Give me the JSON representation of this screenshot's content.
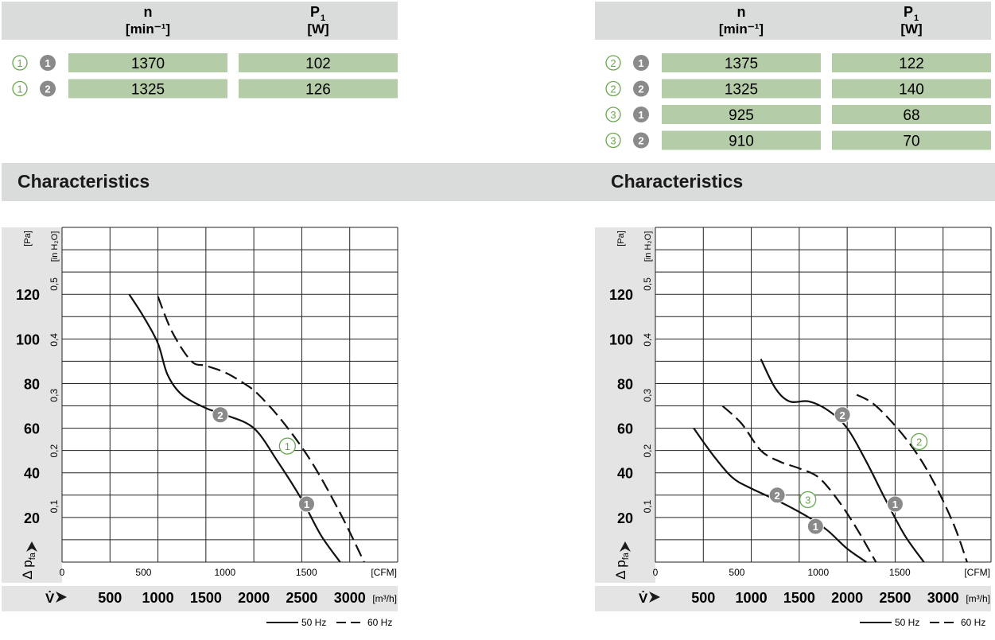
{
  "tables": [
    {
      "header": {
        "n_label": "n",
        "n_unit": "[min⁻¹]",
        "p_label": "P",
        "p_sub": "1",
        "p_unit": "[W]"
      },
      "rows": [
        {
          "variant": "1",
          "curve": "1",
          "n": "1370",
          "p1": "102"
        },
        {
          "variant": "1",
          "curve": "2",
          "n": "1325",
          "p1": "126"
        }
      ]
    },
    {
      "header": {
        "n_label": "n",
        "n_unit": "[min⁻¹]",
        "p_label": "P",
        "p_sub": "1",
        "p_unit": "[W]"
      },
      "rows": [
        {
          "variant": "2",
          "curve": "1",
          "n": "1375",
          "p1": "122"
        },
        {
          "variant": "2",
          "curve": "2",
          "n": "1325",
          "p1": "140"
        },
        {
          "variant": "3",
          "curve": "1",
          "n": "925",
          "p1": "68"
        },
        {
          "variant": "3",
          "curve": "2",
          "n": "910",
          "p1": "70"
        }
      ]
    }
  ],
  "section_titles": [
    "Characteristics",
    "Characteristics"
  ],
  "legend": {
    "solid": "50 Hz",
    "dashed": "60 Hz"
  },
  "colors": {
    "table_cell": "#b5cca8",
    "header_bg": "#dadbdb",
    "circle_green": "#6aa84f",
    "badge_gray": "#8a8a8a"
  },
  "chart_data": [
    {
      "type": "line",
      "title": "",
      "ylabel_pa": "[Pa]",
      "ylabel_inh2o": "[in H₂O]",
      "ylabel_symbol": "Δ p",
      "ylabel_symbol_sub": "fa",
      "xlabel_cfm": "[CFM]",
      "xlabel_m3h": "[m³/h]",
      "xlabel_symbol": "V̇",
      "xlim_m3h": [
        0,
        3500
      ],
      "ylim_pa": [
        0,
        150
      ],
      "yticks_pa": [
        "120",
        "100",
        "80",
        "60",
        "40",
        "20"
      ],
      "yticks_inh2o": [
        "0,5",
        "0,4",
        "0,3",
        "0,2",
        "0,1"
      ],
      "xticks_cfm": [
        "0",
        "500",
        "1000",
        "1500"
      ],
      "xticks_m3h": [
        "500",
        "1000",
        "1500",
        "2000",
        "2500",
        "3000"
      ],
      "series": [
        {
          "style": "solid",
          "x": [
            700,
            850,
            1000,
            1100,
            1250,
            1500,
            1700,
            2000,
            2250,
            2500,
            2700,
            2900
          ],
          "y": [
            120,
            110,
            98,
            84,
            75,
            69,
            66,
            60,
            45,
            28,
            12,
            0
          ]
        },
        {
          "style": "dashed",
          "x": [
            1000,
            1150,
            1350,
            1500,
            1700,
            1900,
            2050,
            2300,
            2600,
            2900,
            3150
          ],
          "y": [
            119,
            103,
            90,
            88,
            85,
            80,
            75,
            63,
            45,
            22,
            0
          ]
        }
      ],
      "badges": [
        {
          "kind": "gray",
          "label": "2",
          "x": 1650,
          "y": 66
        },
        {
          "kind": "green",
          "label": "1",
          "x": 2350,
          "y": 52
        },
        {
          "kind": "gray",
          "label": "1",
          "x": 2550,
          "y": 26
        }
      ]
    },
    {
      "type": "line",
      "title": "",
      "ylabel_pa": "[Pa]",
      "ylabel_inh2o": "[in H₂O]",
      "ylabel_symbol": "Δ p",
      "ylabel_symbol_sub": "fa",
      "xlabel_cfm": "[CFM]",
      "xlabel_m3h": "[m³/h]",
      "xlabel_symbol": "V̇",
      "xlim_m3h": [
        0,
        3500
      ],
      "ylim_pa": [
        0,
        150
      ],
      "yticks_pa": [
        "120",
        "100",
        "80",
        "60",
        "40",
        "20"
      ],
      "yticks_inh2o": [
        "0,5",
        "0,4",
        "0,3",
        "0,2",
        "0,1"
      ],
      "xticks_cfm": [
        "0",
        "500",
        "1000",
        "1500"
      ],
      "xticks_m3h": [
        "500",
        "1000",
        "1500",
        "2000",
        "2500",
        "3000"
      ],
      "series": [
        {
          "style": "solid",
          "x": [
            1100,
            1250,
            1400,
            1600,
            1800,
            2000,
            2200,
            2400,
            2600,
            2800
          ],
          "y": [
            91,
            78,
            72,
            72,
            68,
            60,
            45,
            28,
            12,
            0
          ]
        },
        {
          "style": "dashed",
          "x": [
            2100,
            2300,
            2600,
            2850,
            3100,
            3250
          ],
          "y": [
            75,
            70,
            56,
            40,
            18,
            0
          ]
        },
        {
          "style": "solid",
          "x": [
            400,
            600,
            800,
            1000,
            1300,
            1600,
            1800,
            2000,
            2200
          ],
          "y": [
            60,
            48,
            38,
            33,
            27,
            20,
            14,
            6,
            0
          ]
        },
        {
          "style": "dashed",
          "x": [
            700,
            900,
            1100,
            1300,
            1500,
            1700,
            1900,
            2100,
            2300
          ],
          "y": [
            70,
            62,
            50,
            45,
            42,
            38,
            28,
            15,
            0
          ]
        }
      ],
      "badges": [
        {
          "kind": "gray",
          "label": "2",
          "x": 1950,
          "y": 66
        },
        {
          "kind": "green",
          "label": "2",
          "x": 2750,
          "y": 54
        },
        {
          "kind": "gray",
          "label": "1",
          "x": 2500,
          "y": 26
        },
        {
          "kind": "gray",
          "label": "2",
          "x": 1270,
          "y": 30
        },
        {
          "kind": "green",
          "label": "3",
          "x": 1590,
          "y": 28
        },
        {
          "kind": "gray",
          "label": "1",
          "x": 1670,
          "y": 16
        }
      ]
    }
  ]
}
